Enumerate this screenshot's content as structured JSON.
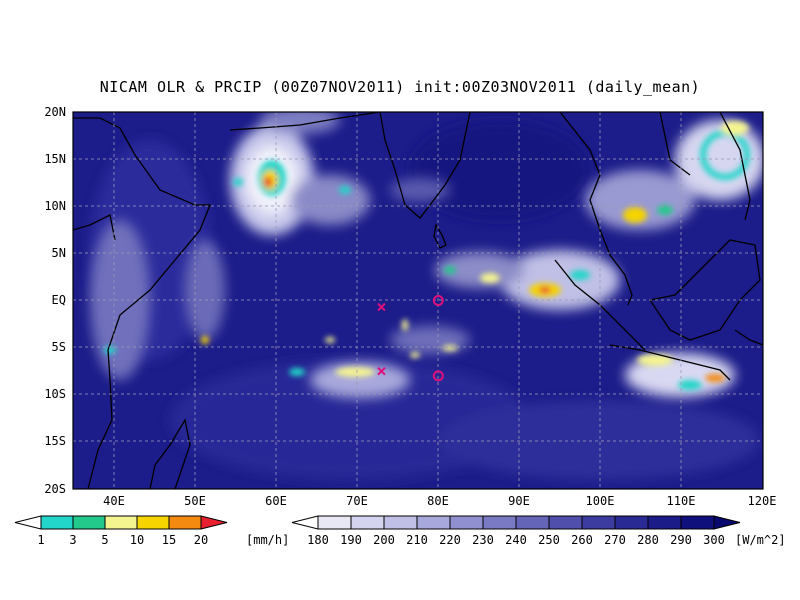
{
  "title": "NICAM OLR & PRCIP (00Z07NOV2011) init:00Z03NOV2011 (daily_mean)",
  "map": {
    "lat_labels": [
      "20N",
      "15N",
      "10N",
      "5N",
      "EQ",
      "5S",
      "10S",
      "15S",
      "20S"
    ],
    "lon_labels": [
      "40E",
      "50E",
      "60E",
      "70E",
      "80E",
      "90E",
      "100E",
      "110E",
      "120E"
    ],
    "lon_range": [
      35,
      120
    ],
    "lat_range": [
      -20,
      20
    ]
  },
  "markers": {
    "circles": [
      {
        "lon": 80,
        "lat": 0
      },
      {
        "lon": 80,
        "lat": -8
      }
    ],
    "crosses": [
      {
        "lon": 73,
        "lat": -0.7
      },
      {
        "lon": 73,
        "lat": -7.5
      }
    ],
    "circle_color": "#e0107a",
    "cross_color": "#e0107a"
  },
  "precip_legend": {
    "ticks": [
      "1",
      "3",
      "5",
      "10",
      "15",
      "20"
    ],
    "unit": "[mm/h]",
    "colors": [
      "#ffffff",
      "#22d6c9",
      "#22c98a",
      "#f5f590",
      "#f5d400",
      "#f58a10",
      "#e82030"
    ]
  },
  "olr_legend": {
    "ticks": [
      "180",
      "190",
      "200",
      "210",
      "220",
      "230",
      "240",
      "250",
      "260",
      "270",
      "280",
      "290",
      "300"
    ],
    "unit": "[W/m^2]",
    "colors": [
      "#ffffff",
      "#e8e8f5",
      "#d4d4ee",
      "#c0c0e6",
      "#a8a8dc",
      "#9090d0",
      "#7a7ac4",
      "#6464b8",
      "#5050ac",
      "#3c3ca0",
      "#2a2a94",
      "#1c1c88",
      "#10107c",
      "#08086e"
    ]
  },
  "colors": {
    "ocean_olr": "#1a1a8c",
    "cloud": "#f0f0fa",
    "coast": "#000000"
  }
}
